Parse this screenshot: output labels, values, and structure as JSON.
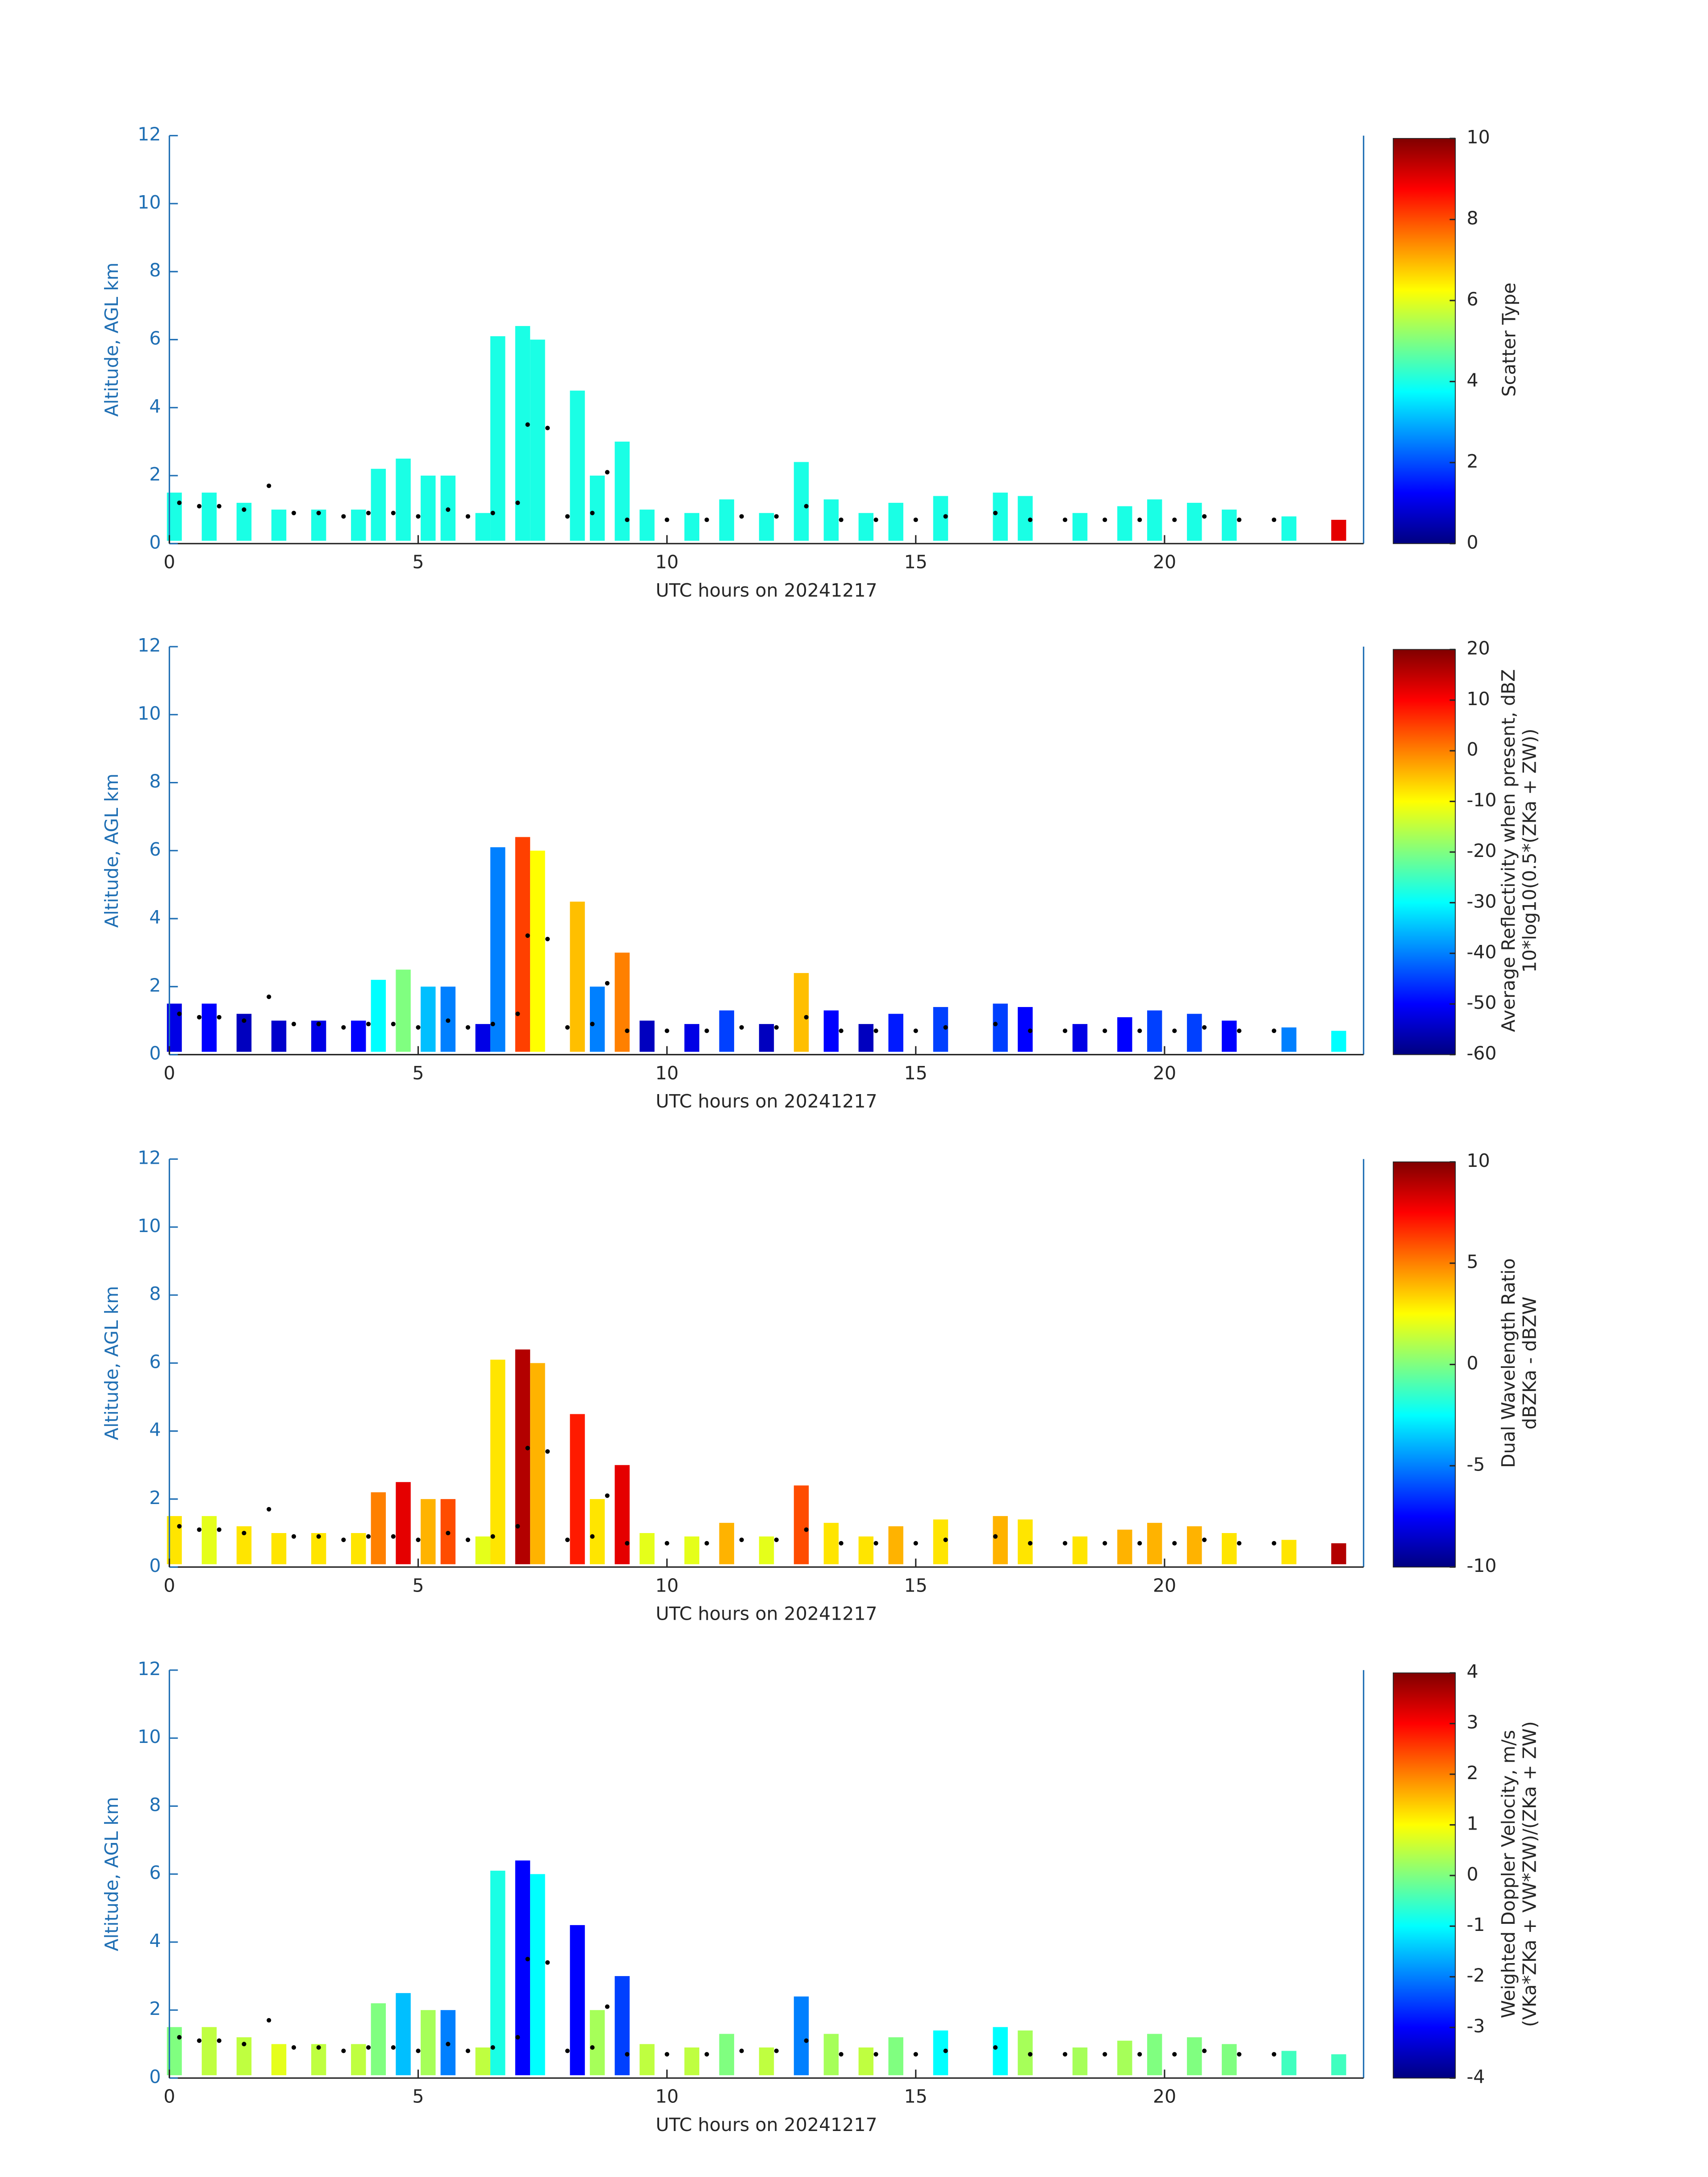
{
  "chart_data": [
    {
      "type": "heatmap",
      "xlabel": "UTC hours on 20241217",
      "ylabel": "Altitude, AGL km",
      "xlim": [
        0,
        24
      ],
      "ylim": [
        0,
        12
      ],
      "xticks": [
        0,
        5,
        10,
        15,
        20
      ],
      "yticks": [
        0,
        2,
        4,
        6,
        8,
        10,
        12
      ],
      "axis_color": "#1f6fb4",
      "point_color": "#000000",
      "colorbar": {
        "label": [
          "Scatter Type"
        ],
        "lim": [
          0,
          10
        ],
        "ticks": [
          0,
          2,
          4,
          6,
          8,
          10
        ]
      },
      "echo": {
        "x": [
          0.1,
          0.8,
          1.5,
          2.2,
          3.0,
          3.8,
          4.2,
          4.7,
          5.2,
          5.6,
          6.3,
          6.6,
          7.1,
          7.4,
          8.2,
          8.6,
          9.1,
          9.6,
          10.5,
          11.2,
          12.0,
          12.7,
          13.3,
          14.0,
          14.6,
          15.5,
          16.7,
          17.2,
          18.3,
          19.2,
          19.8,
          20.6,
          21.3,
          22.5,
          23.5
        ],
        "top": [
          1.5,
          1.5,
          1.2,
          1.0,
          1.0,
          1.0,
          2.2,
          2.5,
          2.0,
          2.0,
          0.9,
          6.1,
          6.4,
          6.0,
          4.5,
          2.0,
          3.0,
          1.0,
          0.9,
          1.3,
          0.9,
          2.4,
          1.3,
          0.9,
          1.2,
          1.4,
          1.5,
          1.4,
          0.9,
          1.1,
          1.3,
          1.2,
          1.0,
          0.8,
          0.7
        ],
        "values": [
          4,
          4,
          4,
          4,
          4,
          4,
          4,
          4,
          4,
          4,
          4,
          4,
          4,
          4,
          4,
          4,
          4,
          4,
          4,
          4,
          4,
          4,
          4,
          4,
          4,
          4,
          4,
          4,
          4,
          4,
          4,
          4,
          4,
          4,
          9
        ]
      },
      "points": {
        "x": [
          0.2,
          0.6,
          1.0,
          1.5,
          2.0,
          2.5,
          3.0,
          3.5,
          4.0,
          4.5,
          5.0,
          5.6,
          6.0,
          6.5,
          7.0,
          7.2,
          7.6,
          8.0,
          8.5,
          8.8,
          9.2,
          10.0,
          10.8,
          11.5,
          12.2,
          12.8,
          13.5,
          14.2,
          15.0,
          15.6,
          16.6,
          17.3,
          18.0,
          18.8,
          19.5,
          20.2,
          20.8,
          21.5,
          22.2
        ],
        "y": [
          1.2,
          1.1,
          1.1,
          1.0,
          1.7,
          0.9,
          0.9,
          0.8,
          0.9,
          0.9,
          0.8,
          1.0,
          0.8,
          0.9,
          1.2,
          3.5,
          3.4,
          0.8,
          0.9,
          2.1,
          0.7,
          0.7,
          0.7,
          0.8,
          0.8,
          1.1,
          0.7,
          0.7,
          0.7,
          0.8,
          0.9,
          0.7,
          0.7,
          0.7,
          0.7,
          0.7,
          0.8,
          0.7,
          0.7
        ]
      }
    },
    {
      "type": "heatmap",
      "xlabel": "UTC hours on 20241217",
      "ylabel": "Altitude, AGL km",
      "xlim": [
        0,
        24
      ],
      "ylim": [
        0,
        12
      ],
      "xticks": [
        0,
        5,
        10,
        15,
        20
      ],
      "yticks": [
        0,
        2,
        4,
        6,
        8,
        10,
        12
      ],
      "axis_color": "#1f6fb4",
      "point_color": "#000000",
      "colorbar": {
        "label": [
          "Average Reflectivity when present, dBZ",
          "10*log10(0.5*(ZKa + ZW))"
        ],
        "lim": [
          -60,
          20
        ],
        "ticks": [
          -60,
          -50,
          -40,
          -30,
          -20,
          -10,
          0,
          10,
          20
        ]
      },
      "echo": {
        "x": [
          0.1,
          0.8,
          1.5,
          2.2,
          3.0,
          3.8,
          4.2,
          4.7,
          5.2,
          5.6,
          6.3,
          6.6,
          7.1,
          7.4,
          8.2,
          8.6,
          9.1,
          9.6,
          10.5,
          11.2,
          12.0,
          12.7,
          13.3,
          14.0,
          14.6,
          15.5,
          16.7,
          17.2,
          18.3,
          19.2,
          19.8,
          20.6,
          21.3,
          22.5,
          23.5
        ],
        "top": [
          1.5,
          1.5,
          1.2,
          1.0,
          1.0,
          1.0,
          2.2,
          2.5,
          2.0,
          2.0,
          0.9,
          6.1,
          6.4,
          6.0,
          4.5,
          2.0,
          3.0,
          1.0,
          0.9,
          1.3,
          0.9,
          2.4,
          1.3,
          0.9,
          1.2,
          1.4,
          1.5,
          1.4,
          0.9,
          1.1,
          1.3,
          1.2,
          1.0,
          0.8,
          0.7
        ],
        "values": [
          -52,
          -50,
          -55,
          -54,
          -52,
          -50,
          -30,
          -20,
          -35,
          -40,
          -52,
          -40,
          5,
          -10,
          -5,
          -40,
          0,
          -55,
          -52,
          -45,
          -55,
          -5,
          -50,
          -55,
          -48,
          -45,
          -45,
          -50,
          -52,
          -50,
          -45,
          -45,
          -50,
          -40,
          -30
        ]
      },
      "points": {
        "x": [
          0.2,
          0.6,
          1.0,
          1.5,
          2.0,
          2.5,
          3.0,
          3.5,
          4.0,
          4.5,
          5.0,
          5.6,
          6.0,
          6.5,
          7.0,
          7.2,
          7.6,
          8.0,
          8.5,
          8.8,
          9.2,
          10.0,
          10.8,
          11.5,
          12.2,
          12.8,
          13.5,
          14.2,
          15.0,
          15.6,
          16.6,
          17.3,
          18.0,
          18.8,
          19.5,
          20.2,
          20.8,
          21.5,
          22.2
        ],
        "y": [
          1.2,
          1.1,
          1.1,
          1.0,
          1.7,
          0.9,
          0.9,
          0.8,
          0.9,
          0.9,
          0.8,
          1.0,
          0.8,
          0.9,
          1.2,
          3.5,
          3.4,
          0.8,
          0.9,
          2.1,
          0.7,
          0.7,
          0.7,
          0.8,
          0.8,
          1.1,
          0.7,
          0.7,
          0.7,
          0.8,
          0.9,
          0.7,
          0.7,
          0.7,
          0.7,
          0.7,
          0.8,
          0.7,
          0.7
        ]
      }
    },
    {
      "type": "heatmap",
      "xlabel": "UTC hours on 20241217",
      "ylabel": "Altitude, AGL km",
      "xlim": [
        0,
        24
      ],
      "ylim": [
        0,
        12
      ],
      "xticks": [
        0,
        5,
        10,
        15,
        20
      ],
      "yticks": [
        0,
        2,
        4,
        6,
        8,
        10,
        12
      ],
      "axis_color": "#1f6fb4",
      "point_color": "#000000",
      "colorbar": {
        "label": [
          "Dual Wavelength Ratio",
          "dBZKa - dBZW"
        ],
        "lim": [
          -10,
          10
        ],
        "ticks": [
          -10,
          -5,
          0,
          5,
          10
        ]
      },
      "echo": {
        "x": [
          0.1,
          0.8,
          1.5,
          2.2,
          3.0,
          3.8,
          4.2,
          4.7,
          5.2,
          5.6,
          6.3,
          6.6,
          7.1,
          7.4,
          8.2,
          8.6,
          9.1,
          9.6,
          10.5,
          11.2,
          12.0,
          12.7,
          13.3,
          14.0,
          14.6,
          15.5,
          16.7,
          17.2,
          18.3,
          19.2,
          19.8,
          20.6,
          21.3,
          22.5,
          23.5
        ],
        "top": [
          1.5,
          1.5,
          1.2,
          1.0,
          1.0,
          1.0,
          2.2,
          2.5,
          2.0,
          2.0,
          0.9,
          6.1,
          6.4,
          6.0,
          4.5,
          2.0,
          3.0,
          1.0,
          0.9,
          1.3,
          0.9,
          2.4,
          1.3,
          0.9,
          1.2,
          1.4,
          1.5,
          1.4,
          0.9,
          1.1,
          1.3,
          1.2,
          1.0,
          0.8,
          0.7
        ],
        "values": [
          3,
          2,
          3,
          3,
          3,
          3,
          5,
          8,
          4,
          6,
          2,
          3,
          9,
          4,
          7,
          3,
          8,
          2,
          2,
          4,
          2,
          6,
          3,
          3,
          4,
          3,
          4,
          3,
          3,
          4,
          4,
          4,
          3,
          3,
          9
        ]
      },
      "points": {
        "x": [
          0.2,
          0.6,
          1.0,
          1.5,
          2.0,
          2.5,
          3.0,
          3.5,
          4.0,
          4.5,
          5.0,
          5.6,
          6.0,
          6.5,
          7.0,
          7.2,
          7.6,
          8.0,
          8.5,
          8.8,
          9.2,
          10.0,
          10.8,
          11.5,
          12.2,
          12.8,
          13.5,
          14.2,
          15.0,
          15.6,
          16.6,
          17.3,
          18.0,
          18.8,
          19.5,
          20.2,
          20.8,
          21.5,
          22.2
        ],
        "y": [
          1.2,
          1.1,
          1.1,
          1.0,
          1.7,
          0.9,
          0.9,
          0.8,
          0.9,
          0.9,
          0.8,
          1.0,
          0.8,
          0.9,
          1.2,
          3.5,
          3.4,
          0.8,
          0.9,
          2.1,
          0.7,
          0.7,
          0.7,
          0.8,
          0.8,
          1.1,
          0.7,
          0.7,
          0.7,
          0.8,
          0.9,
          0.7,
          0.7,
          0.7,
          0.7,
          0.7,
          0.8,
          0.7,
          0.7
        ]
      }
    },
    {
      "type": "heatmap",
      "xlabel": "UTC hours on 20241217",
      "ylabel": "Altitude, AGL km",
      "xlim": [
        0,
        24
      ],
      "ylim": [
        0,
        12
      ],
      "xticks": [
        0,
        5,
        10,
        15,
        20
      ],
      "yticks": [
        0,
        2,
        4,
        6,
        8,
        10,
        12
      ],
      "axis_color": "#1f6fb4",
      "point_color": "#000000",
      "colorbar": {
        "label": [
          "Weighted Doppler Velocity, m/s",
          "(VKa*ZKa + VW*ZW)/(ZKa + ZW)"
        ],
        "lim": [
          -4,
          4
        ],
        "ticks": [
          -4,
          -3,
          -2,
          -1,
          0,
          1,
          2,
          3,
          4
        ]
      },
      "echo": {
        "x": [
          0.1,
          0.8,
          1.5,
          2.2,
          3.0,
          3.8,
          4.2,
          4.7,
          5.2,
          5.6,
          6.3,
          6.6,
          7.1,
          7.4,
          8.2,
          8.6,
          9.1,
          9.6,
          10.5,
          11.2,
          12.0,
          12.7,
          13.3,
          14.0,
          14.6,
          15.5,
          16.7,
          17.2,
          18.3,
          19.2,
          19.8,
          20.6,
          21.3,
          22.5,
          23.5
        ],
        "top": [
          1.5,
          1.5,
          1.2,
          1.0,
          1.0,
          1.0,
          2.2,
          2.5,
          2.0,
          2.0,
          0.9,
          6.1,
          6.4,
          6.0,
          4.5,
          2.0,
          3.0,
          1.0,
          0.9,
          1.3,
          0.9,
          2.4,
          1.3,
          0.9,
          1.2,
          1.4,
          1.5,
          1.4,
          0.9,
          1.1,
          1.3,
          1.2,
          1.0,
          0.8,
          0.7
        ],
        "values": [
          0,
          0.5,
          0.5,
          0.8,
          0.5,
          0.5,
          0,
          -1.5,
          0.3,
          -2,
          0.5,
          -0.8,
          -3,
          -1,
          -3,
          0.3,
          -2.5,
          0.5,
          0.5,
          0,
          0.5,
          -2,
          0.3,
          0.5,
          0,
          -1,
          -1,
          0.3,
          0.3,
          0.3,
          0,
          0,
          0,
          -0.5,
          -0.5
        ]
      },
      "points": {
        "x": [
          0.2,
          0.6,
          1.0,
          1.5,
          2.0,
          2.5,
          3.0,
          3.5,
          4.0,
          4.5,
          5.0,
          5.6,
          6.0,
          6.5,
          7.0,
          7.2,
          7.6,
          8.0,
          8.5,
          8.8,
          9.2,
          10.0,
          10.8,
          11.5,
          12.2,
          12.8,
          13.5,
          14.2,
          15.0,
          15.6,
          16.6,
          17.3,
          18.0,
          18.8,
          19.5,
          20.2,
          20.8,
          21.5,
          22.2
        ],
        "y": [
          1.2,
          1.1,
          1.1,
          1.0,
          1.7,
          0.9,
          0.9,
          0.8,
          0.9,
          0.9,
          0.8,
          1.0,
          0.8,
          0.9,
          1.2,
          3.5,
          3.4,
          0.8,
          0.9,
          2.1,
          0.7,
          0.7,
          0.7,
          0.8,
          0.8,
          1.1,
          0.7,
          0.7,
          0.7,
          0.8,
          0.9,
          0.7,
          0.7,
          0.7,
          0.7,
          0.7,
          0.8,
          0.7,
          0.7
        ]
      }
    }
  ]
}
